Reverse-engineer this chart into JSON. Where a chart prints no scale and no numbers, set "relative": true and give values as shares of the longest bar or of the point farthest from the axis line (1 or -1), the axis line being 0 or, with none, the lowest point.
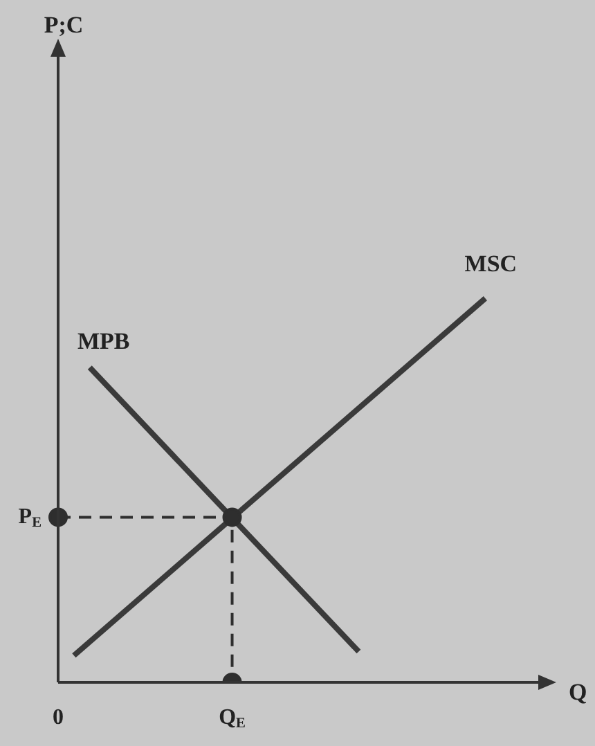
{
  "chart_data": {
    "type": "line",
    "relative": true,
    "xlabel": "Q",
    "grid": false,
    "legend": false,
    "categories": [
      "0",
      null,
      null,
      null,
      null,
      null,
      null,
      null,
      null,
      null,
      null,
      "Q$_{E}$",
      null,
      null,
      null,
      null,
      null,
      null,
      null,
      null,
      null,
      null,
      null,
      null,
      null,
      null,
      null,
      null,
      null,
      null,
      null
    ],
    "series": [
      {
        "name": "MPB",
        "color": "#3a3a3a",
        "values": [
          null,
          null,
          0.82,
          null,
          null,
          null,
          null,
          null,
          null,
          null,
          null,
          null,
          null,
          null,
          null,
          null,
          null,
          null,
          null,
          0.08,
          null,
          null,
          null,
          null,
          null,
          null,
          null,
          null,
          null,
          null,
          null
        ],
        "marker": "none",
        "line_style": "solid"
      },
      {
        "name": "MSC",
        "color": "#3a3a3a",
        "values": [
          null,
          0.07,
          null,
          null,
          null,
          null,
          null,
          null,
          null,
          null,
          null,
          null,
          null,
          null,
          null,
          null,
          null,
          null,
          null,
          null,
          null,
          null,
          null,
          null,
          null,
          null,
          null,
          1,
          null,
          null,
          null
        ],
        "marker": "none",
        "line_style": "solid"
      },
      {
        "color": "#2e2e2e",
        "x": [
          "0",
          "Q$_{E}$",
          "Q$_{E}$"
        ],
        "values": [
          0.43,
          0.43,
          0
        ],
        "marker": "circle",
        "line_style": "dashed"
      }
    ],
    "annotations": [
      "P;C",
      {
        "text": "P$_{E}$",
        "x": "0",
        "y": 0.43
      }
    ]
  }
}
